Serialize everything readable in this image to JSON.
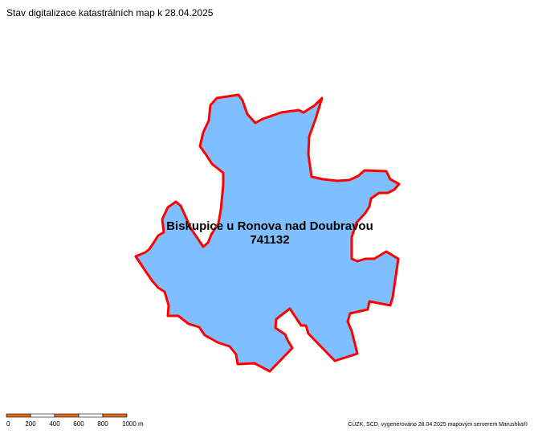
{
  "header": {
    "title": "Stav digitalizace katastrálních map k 28.04.2025"
  },
  "area": {
    "name": "Biskupice u Ronova nad Doubravou",
    "code": "741132"
  },
  "scale_bar": {
    "labels": [
      "0",
      "200",
      "400",
      "600",
      "800",
      "1000 m"
    ]
  },
  "footer": {
    "credit": "ČÚZK, SCD, vygenerováno 28.04.2025 mapovým serverem Marushka®"
  }
}
